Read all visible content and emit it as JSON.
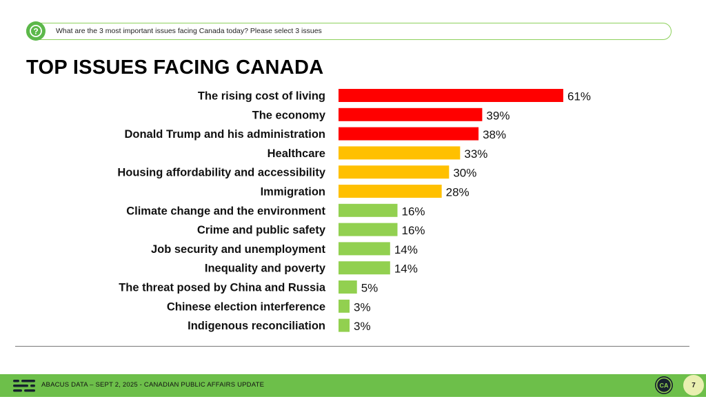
{
  "question": {
    "icon": "question-icon",
    "text": "What are the 3 most important issues facing Canada today? Please select 3 issues"
  },
  "title": "TOP ISSUES FACING CANADA",
  "chart_data": {
    "type": "bar",
    "orientation": "horizontal",
    "title": "TOP ISSUES FACING CANADA",
    "xlabel": "",
    "ylabel": "",
    "xlim": [
      0,
      61
    ],
    "grid": false,
    "categories": [
      "The rising cost of living",
      "The economy",
      "Donald Trump and his administration",
      "Healthcare",
      "Housing affordability and accessibility",
      "Immigration",
      "Climate change and the environment",
      "Crime and public safety",
      "Job security and unemployment",
      "Inequality and poverty",
      "The threat posed by China and Russia",
      "Chinese election interference",
      "Indigenous reconciliation"
    ],
    "values": [
      61,
      39,
      38,
      33,
      30,
      28,
      16,
      16,
      14,
      14,
      5,
      3,
      3
    ],
    "data_labels": [
      "61%",
      "39%",
      "38%",
      "33%",
      "30%",
      "28%",
      "16%",
      "16%",
      "14%",
      "14%",
      "5%",
      "3%",
      "3%"
    ],
    "bar_colors": [
      "#ff0000",
      "#ff0000",
      "#ff0000",
      "#ffc000",
      "#ffc000",
      "#ffc000",
      "#92d050",
      "#92d050",
      "#92d050",
      "#92d050",
      "#92d050",
      "#92d050",
      "#92d050"
    ]
  },
  "footer": {
    "text": "ABACUS DATA – SEPT 2, 2025 - CANADIAN PUBLIC AFFAIRS UPDATE",
    "logo_icon": "abacus-logo-icon",
    "badge_icon": "ca-badge-icon",
    "badge_text": "CA",
    "page_number": "7",
    "color": "#6dbf4a"
  }
}
